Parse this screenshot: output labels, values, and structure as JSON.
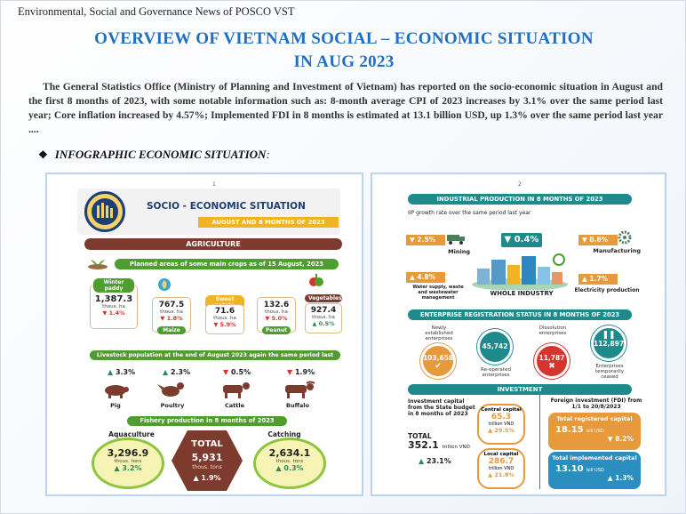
{
  "header": "Environmental, Social and Governance News of POSCO VST",
  "title_line1": "OVERVIEW  OF VIETNAM  SOCIAL – ECONOMIC  SITUATION",
  "title_line2": "IN AUG 2023",
  "intro": "The General Statistics Office (Ministry of Planning and Investment of Vietnam) has reported on the socio-economic situation in August and the first 8 months of 2023, with some notable information such as: 8-month average CPI of 2023 increases by 3.1% over the same period last year; Core inflation increased by 4.57%; Implemented FDI in 8 months is estimated at 13.1 billion USD, up 1.3% over the same period last year ....",
  "subheading": "INFOGRAPHIC ECONOMIC SITUATION",
  "subheading_suffix": ":",
  "bullet_icon": "diamond-bullet-icon",
  "colors": {
    "title": "#1f6fc5",
    "green": "#4f9c2f",
    "brown": "#7c3b2d",
    "teal": "#1f8a8c",
    "orange": "#e69a3c",
    "red": "#d6342c"
  },
  "page1": {
    "page_number": "1",
    "banner_title": "SOCIO - ECONOMIC SITUATION",
    "banner_subtitle": "AUGUST AND 8 MONTHS OF 2023",
    "agriculture_label": "AGRICULTURE",
    "crops_title": "Planned areas of some main crops as of 15 August, 2023",
    "crops": [
      {
        "name": "Winter paddy",
        "value": "1,387.3",
        "unit": "thous. ha",
        "change": "1.4%",
        "dir": "down"
      },
      {
        "name": "Maize",
        "value": "767.5",
        "unit": "thous. ha",
        "change": "1.8%",
        "dir": "down"
      },
      {
        "name": "Sweet potato",
        "value": "71.6",
        "unit": "thous. ha",
        "change": "5.9%",
        "dir": "down"
      },
      {
        "name": "Peanut",
        "value": "132.6",
        "unit": "thous. ha",
        "change": "5.0%",
        "dir": "down"
      },
      {
        "name": "Vegetables",
        "value": "927.4",
        "unit": "thous. ha",
        "change": "0.5%",
        "dir": "up"
      }
    ],
    "livestock_title": "Livestock population at the end of August 2023 again the same period last year",
    "livestock": [
      {
        "name": "Pig",
        "change": "3.3%",
        "dir": "up"
      },
      {
        "name": "Poultry",
        "change": "2.3%",
        "dir": "up"
      },
      {
        "name": "Cattle",
        "change": "0.5%",
        "dir": "down"
      },
      {
        "name": "Buffalo",
        "change": "1.9%",
        "dir": "down"
      }
    ],
    "fishery_title": "Fishery production in 8 months of 2023",
    "aquaculture": {
      "label": "Aquaculture",
      "value": "3,296.9",
      "unit": "thous. tons",
      "change": "3.2%",
      "dir": "up"
    },
    "total": {
      "label": "TOTAL",
      "value": "5,931",
      "unit": "thous. tons",
      "change": "1.9%",
      "dir": "up"
    },
    "catching": {
      "label": "Catching",
      "value": "2,634.1",
      "unit": "thous. tons",
      "change": "0.3%",
      "dir": "up"
    }
  },
  "page2": {
    "page_number": "2",
    "industrial_title": "INDUSTRIAL PRODUCTION IN 8 MONTHS OF 2023",
    "iip_caption": "IIP growth rate over the same period last year",
    "mining": {
      "label": "Mining",
      "change": "2.5%",
      "dir": "down"
    },
    "whole_industry": {
      "label": "WHOLE INDUSTRY",
      "change": "0.4%",
      "dir": "down"
    },
    "manufacturing": {
      "label": "Manufacturing",
      "change": "0.6%",
      "dir": "down"
    },
    "water": {
      "label": "Water supply, waste and wastewater management",
      "change": "4.8%",
      "dir": "up"
    },
    "electricity": {
      "label": "Electricity production",
      "change": "1.7%",
      "dir": "up"
    },
    "enterprise_title": "ENTERPRISE REGISTRATION STATUS IN 8 MONTHS OF 2023",
    "enterprises": [
      {
        "label": "Newly established enterprises",
        "value": "103,658"
      },
      {
        "label": "Re-operated enterprises",
        "value": "45,742"
      },
      {
        "label": "Dissolution enterprises",
        "value": "11,787"
      },
      {
        "label": "Enterprises temporarily ceased",
        "value": "112,897"
      }
    ],
    "investment_title": "INVESTMENT",
    "state_caption": "Investment capital from the State budget in 8 months of 2023",
    "state_total_label": "TOTAL",
    "state_total_value": "352.1",
    "state_total_unit": "trillion VND",
    "state_total_change": "23.1%",
    "central": {
      "label": "Central capital",
      "value": "65.3",
      "unit": "trillion VND",
      "change": "29.5%"
    },
    "local": {
      "label": "Local capital",
      "value": "286.7",
      "unit": "trillion VND",
      "change": "21.8%"
    },
    "fdi_caption": "Foreign investment (FDI) from 1/1 to 20/8/2023",
    "registered": {
      "label": "Total registered capital",
      "value": "18.15",
      "unit": "bill USD",
      "change": "8.2%",
      "dir": "down"
    },
    "implemented": {
      "label": "Total implemented capital",
      "value": "13.10",
      "unit": "bill USD",
      "change": "1.3%",
      "dir": "up"
    }
  }
}
